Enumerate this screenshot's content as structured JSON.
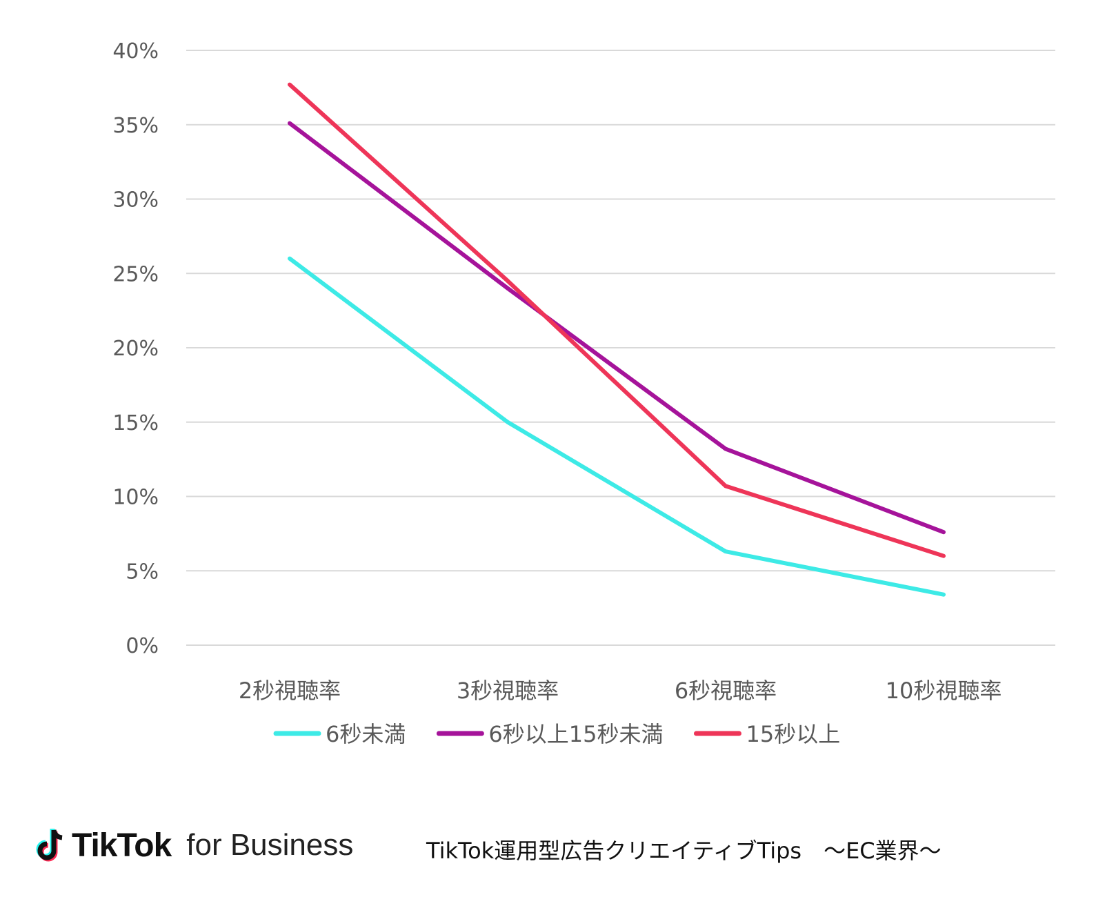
{
  "chart_data": {
    "type": "line",
    "title": "",
    "xlabel": "",
    "ylabel": "",
    "categories": [
      "2秒視聴率",
      "3秒視聴率",
      "6秒視聴率",
      "10秒視聴率"
    ],
    "series": [
      {
        "name": "6秒未満",
        "color": "#3deae6",
        "values": [
          26.0,
          15.0,
          6.3,
          3.4
        ]
      },
      {
        "name": "6秒以上15秒未満",
        "color": "#a5139a",
        "values": [
          35.1,
          24.0,
          13.2,
          7.6
        ]
      },
      {
        "name": "15秒以上",
        "color": "#ee3558",
        "values": [
          37.7,
          24.5,
          10.7,
          6.0
        ]
      }
    ],
    "ylim": [
      0,
      40
    ],
    "yticks": [
      0,
      5,
      10,
      15,
      20,
      25,
      30,
      35,
      40
    ],
    "ytick_labels": [
      "0%",
      "5%",
      "10%",
      "15%",
      "20%",
      "25%",
      "30%",
      "35%",
      "40%"
    ],
    "grid": true,
    "legend_position": "bottom"
  },
  "footer": {
    "brand_name": "TikTok",
    "brand_sub": "for Business",
    "caption": "TikTok運用型広告クリエイティブTips　～EC業界～"
  }
}
